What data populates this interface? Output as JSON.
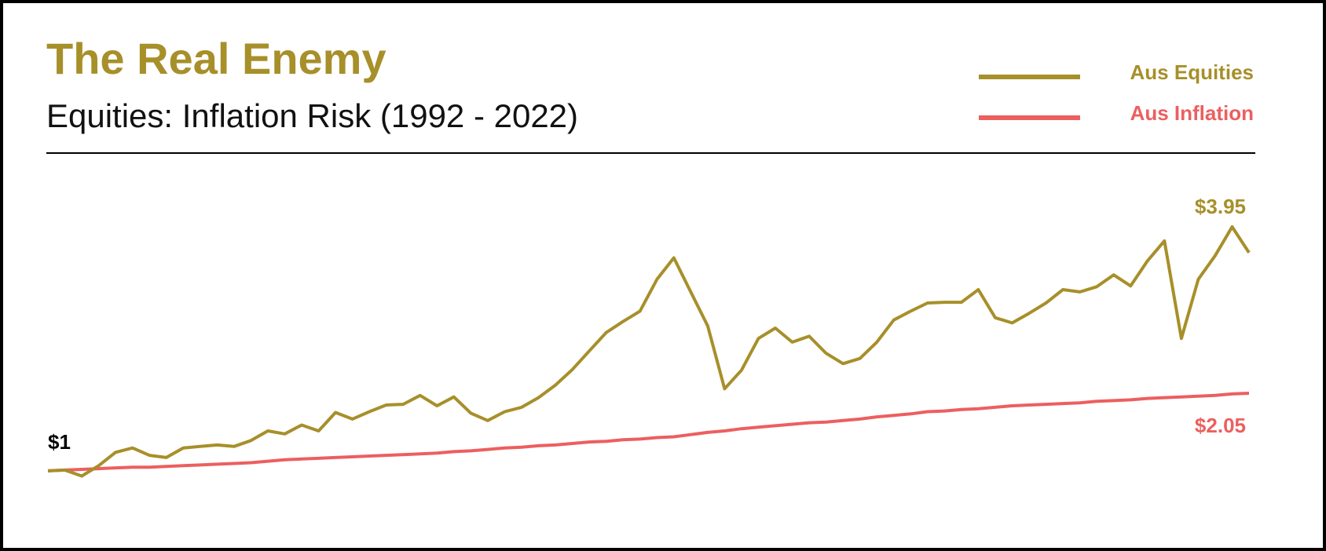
{
  "chart_data": {
    "type": "line",
    "title": "The Real Enemy",
    "subtitle": "Equities: Inflation Risk (1992 - 2022)",
    "start_label": "$1",
    "ylim": [
      0.5,
      5.0
    ],
    "legend": "upper right",
    "series": [
      {
        "name": "Aus Equities",
        "color": "#a78f2a",
        "end_label": "$3.95",
        "values": [
          1.0,
          1.01,
          0.93,
          1.07,
          1.25,
          1.31,
          1.21,
          1.18,
          1.31,
          1.33,
          1.35,
          1.33,
          1.41,
          1.54,
          1.5,
          1.62,
          1.54,
          1.79,
          1.7,
          1.8,
          1.89,
          1.9,
          2.02,
          1.88,
          2.0,
          1.78,
          1.68,
          1.8,
          1.86,
          1.99,
          2.16,
          2.37,
          2.62,
          2.87,
          3.02,
          3.16,
          3.59,
          3.88,
          3.42,
          2.96,
          2.11,
          2.36,
          2.79,
          2.93,
          2.74,
          2.82,
          2.59,
          2.45,
          2.52,
          2.74,
          3.04,
          3.16,
          3.27,
          3.28,
          3.28,
          3.45,
          3.07,
          3.0,
          3.13,
          3.27,
          3.45,
          3.42,
          3.49,
          3.65,
          3.5,
          3.84,
          4.11,
          2.79,
          3.59,
          3.91,
          4.3,
          3.95
        ]
      },
      {
        "name": "Aus Inflation",
        "color": "#ec5f5f",
        "end_label": "$2.05",
        "values": [
          1.0,
          1.01,
          1.02,
          1.03,
          1.04,
          1.05,
          1.05,
          1.06,
          1.07,
          1.08,
          1.09,
          1.1,
          1.11,
          1.13,
          1.15,
          1.16,
          1.17,
          1.18,
          1.19,
          1.2,
          1.21,
          1.22,
          1.23,
          1.24,
          1.26,
          1.27,
          1.29,
          1.31,
          1.32,
          1.34,
          1.35,
          1.37,
          1.39,
          1.4,
          1.42,
          1.43,
          1.45,
          1.46,
          1.49,
          1.52,
          1.54,
          1.57,
          1.59,
          1.61,
          1.63,
          1.65,
          1.66,
          1.68,
          1.7,
          1.73,
          1.75,
          1.77,
          1.8,
          1.81,
          1.83,
          1.84,
          1.86,
          1.88,
          1.89,
          1.9,
          1.91,
          1.92,
          1.94,
          1.95,
          1.96,
          1.98,
          1.99,
          2.0,
          2.01,
          2.02,
          2.04,
          2.05
        ]
      }
    ]
  }
}
